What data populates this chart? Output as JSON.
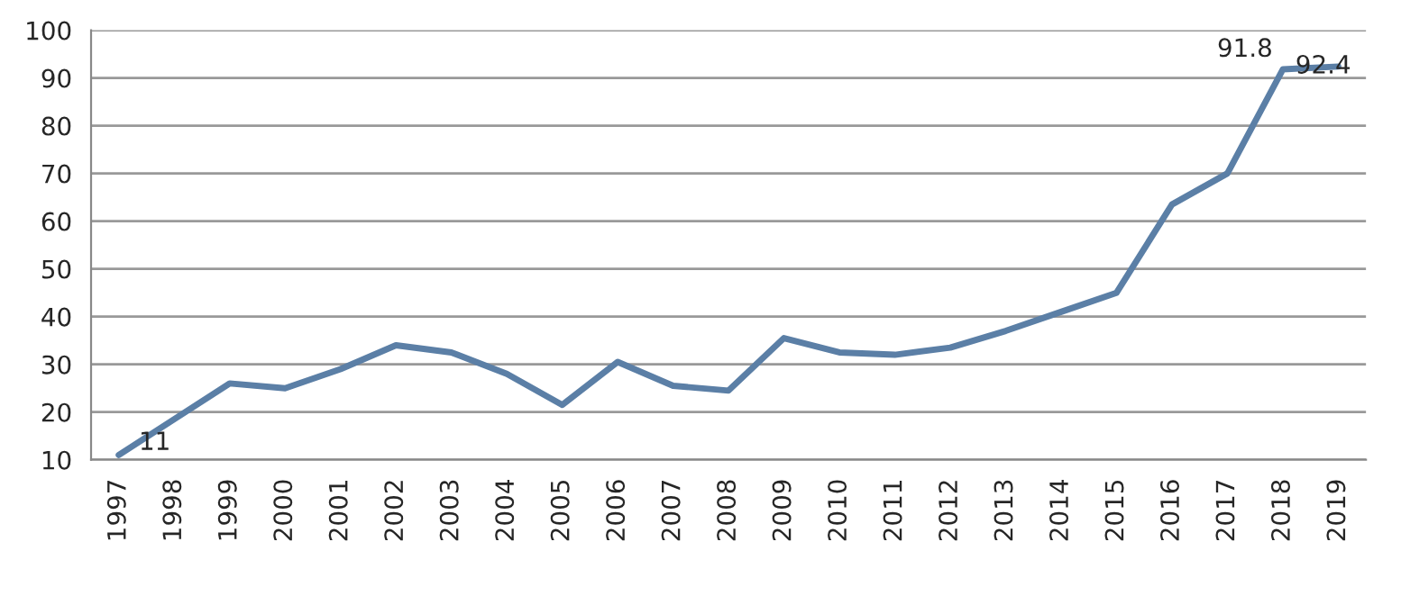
{
  "chart_data": {
    "type": "line",
    "categories": [
      "1997",
      "1998",
      "1999",
      "2000",
      "2001",
      "2002",
      "2003",
      "2004",
      "2005",
      "2006",
      "2007",
      "2008",
      "2009",
      "2010",
      "2011",
      "2012",
      "2013",
      "2014",
      "2015",
      "2016",
      "2017",
      "2018",
      "2019"
    ],
    "series": [
      {
        "color": "#5b7fa6",
        "values": [
          11,
          18.5,
          26,
          25,
          29,
          34,
          32.5,
          28,
          21.5,
          30.5,
          25.5,
          24.5,
          35.5,
          32.5,
          32,
          33.5,
          37,
          41,
          45,
          63.5,
          70,
          91.8,
          92.4
        ],
        "value_labels": [
          "11",
          null,
          null,
          null,
          null,
          null,
          null,
          null,
          null,
          null,
          null,
          null,
          null,
          null,
          null,
          null,
          null,
          null,
          null,
          null,
          null,
          "91.8",
          "92.4"
        ]
      }
    ],
    "ylim": [
      10,
      100
    ],
    "yticks": [
      10,
      20,
      30,
      40,
      50,
      60,
      70,
      80,
      90,
      100
    ],
    "grid": "y",
    "marker": "none",
    "line_style": "solid"
  }
}
